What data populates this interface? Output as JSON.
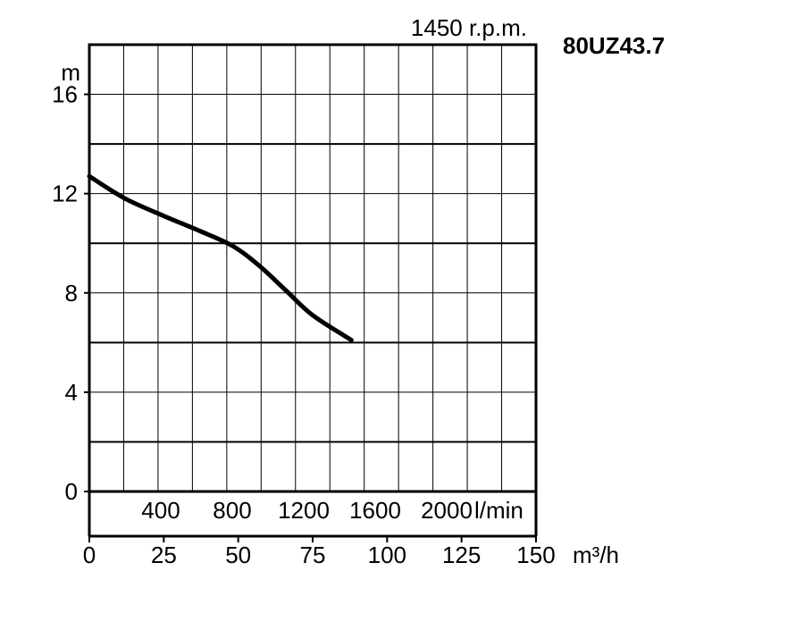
{
  "chart_data": {
    "type": "line",
    "title": "80UZ43.7",
    "subtitle": "1450 r.p.m.",
    "ylabel": "m",
    "xlabel": "m³/h",
    "x2label": "l/min",
    "ylim": [
      0,
      18
    ],
    "yticks": [
      "0",
      "4",
      "8",
      "12",
      "16"
    ],
    "yticks_values": [
      0,
      4,
      8,
      12,
      16
    ],
    "xlim": [
      0,
      150
    ],
    "xticks": [
      "0",
      "25",
      "50",
      "75",
      "100",
      "125",
      "150"
    ],
    "xticks_values": [
      0,
      25,
      50,
      75,
      100,
      125,
      150
    ],
    "x2ticks": [
      "400",
      "800",
      "1200",
      "1600",
      "2000"
    ],
    "x2ticks_values": [
      400,
      800,
      1200,
      1600,
      2000
    ],
    "grid": true,
    "series": [
      {
        "x": [
          0,
          12,
          25,
          37,
          48,
          57,
          66,
          75,
          88
        ],
        "y": [
          12.7,
          11.8,
          11.1,
          10.5,
          9.9,
          9.1,
          8.1,
          7.1,
          6.1
        ]
      }
    ],
    "colors": {
      "line": "#000000",
      "grid": "#000000"
    }
  }
}
